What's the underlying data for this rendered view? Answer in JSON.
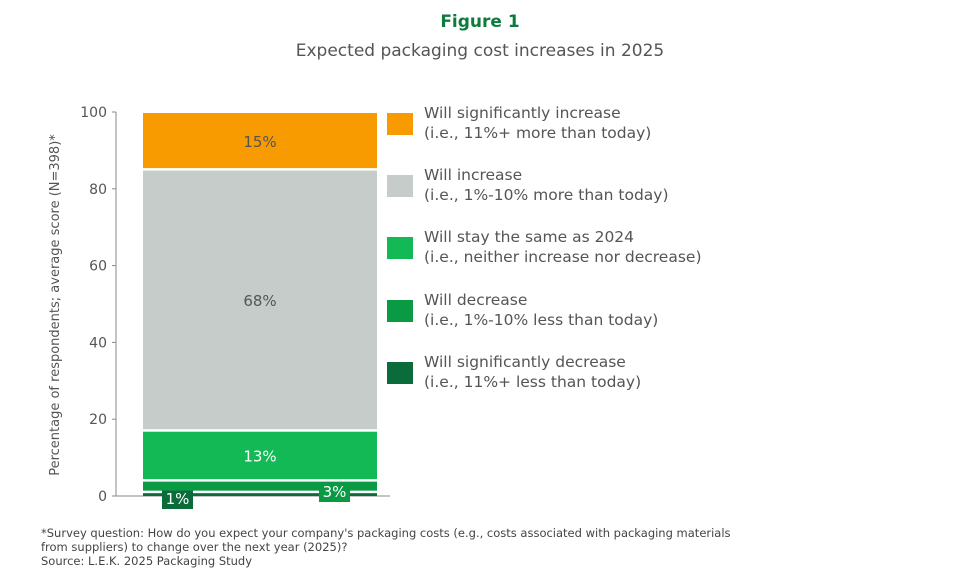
{
  "chart_data": {
    "type": "bar",
    "stacked": true,
    "figure_label": "Figure 1",
    "title": "Expected packaging cost increases in 2025",
    "ylabel": "Percentage of respondents; average score (N=398)*",
    "ylim": [
      0,
      100
    ],
    "yticks": [
      0,
      20,
      40,
      60,
      80,
      100
    ],
    "grid": false,
    "legend_position": "right",
    "series": [
      {
        "name": "Will significantly decrease",
        "name_line2": "(i.e., 11%+ less than today)",
        "value": 1,
        "label": "1%",
        "color": "#0B6B3A"
      },
      {
        "name": "Will decrease",
        "name_line2": "(i.e., 1%-10% less than today)",
        "value": 3,
        "label": "3%",
        "color": "#0A9A44"
      },
      {
        "name": "Will stay the same as 2024",
        "name_line2": "(i.e., neither increase nor decrease)",
        "value": 13,
        "label": "13%",
        "color": "#13B955"
      },
      {
        "name": "Will increase",
        "name_line2": "(i.e., 1%-10% more than today)",
        "value": 68,
        "label": "68%",
        "color": "#C5CCCA"
      },
      {
        "name": "Will significantly increase",
        "name_line2": "(i.e., 11%+ more than today)",
        "value": 15,
        "label": "15%",
        "color": "#F89B00"
      }
    ],
    "footnote": [
      "*Survey question: How do you expect your company's packaging costs (e.g., costs associated with packaging materials",
      "from suppliers) to change over the next year (2025)?",
      "Source: L.E.K. 2025 Packaging Study"
    ]
  },
  "colors": {
    "title": "#0E7A3E",
    "text": "#555555"
  }
}
